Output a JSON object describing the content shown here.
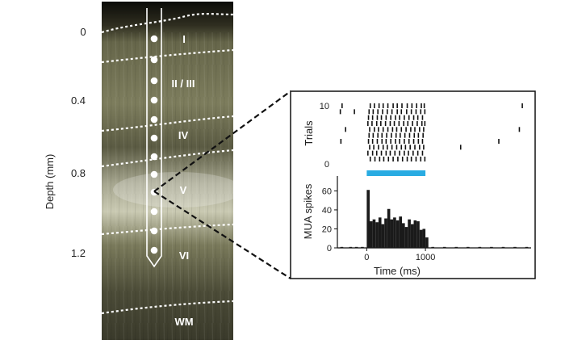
{
  "depth_axis": {
    "title": "Depth (mm)",
    "ticks": [
      "0",
      "0.4",
      "0.8",
      "1.2"
    ]
  },
  "layers": [
    "I",
    "II / III",
    "IV",
    "V",
    "VI",
    "WM"
  ],
  "colors": {
    "tissue_dark": "#3e3d2c",
    "tissue_mid": "#6f6f52",
    "tissue_light": "#bcbca6",
    "stimulus_bar": "#29abe2",
    "histogram": "#1a1a1a"
  },
  "chart_data": [
    {
      "type": "scatter",
      "ylabel": "Trials",
      "ytick_labels": [
        "10",
        "0"
      ],
      "ylim": [
        0,
        10
      ],
      "xlim": [
        -500,
        2800
      ],
      "stimulus_window": [
        0,
        1000
      ],
      "trials": [
        {
          "trial": 10,
          "spikes": [
            -420,
            60,
            130,
            210,
            280,
            360,
            450,
            520,
            600,
            690,
            770,
            850,
            930,
            980,
            2650
          ]
        },
        {
          "trial": 9,
          "spikes": [
            -450,
            -210,
            40,
            110,
            190,
            270,
            350,
            430,
            520,
            590,
            680,
            760,
            840,
            920,
            990
          ]
        },
        {
          "trial": 8,
          "spikes": [
            30,
            100,
            180,
            250,
            330,
            410,
            490,
            560,
            640,
            720,
            800,
            870,
            950
          ]
        },
        {
          "trial": 7,
          "spikes": [
            20,
            90,
            170,
            240,
            320,
            400,
            470,
            550,
            630,
            700,
            780,
            860,
            940,
            990
          ]
        },
        {
          "trial": 6,
          "spikes": [
            -360,
            50,
            130,
            200,
            280,
            360,
            440,
            510,
            590,
            670,
            750,
            820,
            900,
            970,
            2600
          ]
        },
        {
          "trial": 5,
          "spikes": [
            40,
            110,
            190,
            260,
            340,
            420,
            500,
            570,
            650,
            730,
            810,
            880,
            960
          ]
        },
        {
          "trial": 4,
          "spikes": [
            -440,
            30,
            100,
            180,
            260,
            330,
            410,
            490,
            560,
            640,
            720,
            800,
            880,
            950,
            2250
          ]
        },
        {
          "trial": 3,
          "spikes": [
            50,
            120,
            200,
            280,
            350,
            430,
            510,
            590,
            660,
            740,
            820,
            900,
            970,
            1600
          ]
        },
        {
          "trial": 2,
          "spikes": [
            20,
            100,
            170,
            250,
            330,
            400,
            480,
            560,
            640,
            710,
            790,
            870,
            950
          ]
        },
        {
          "trial": 1,
          "spikes": [
            60,
            140,
            220,
            290,
            370,
            450,
            530,
            610,
            690,
            760,
            840,
            920,
            990
          ]
        }
      ]
    },
    {
      "type": "bar",
      "ylabel": "MUA spikes",
      "xlabel": "Time (ms)",
      "xticks": [
        0,
        1000
      ],
      "yticks": [
        0,
        20,
        40,
        60
      ],
      "ylim": [
        0,
        68
      ],
      "xlim": [
        -500,
        2800
      ],
      "bin_width_ms": 50,
      "bins": [
        {
          "x": -450,
          "y": 1
        },
        {
          "x": -400,
          "y": 0
        },
        {
          "x": -350,
          "y": 0
        },
        {
          "x": -300,
          "y": 1
        },
        {
          "x": -250,
          "y": 0
        },
        {
          "x": -200,
          "y": 1
        },
        {
          "x": -150,
          "y": 0
        },
        {
          "x": -100,
          "y": 1
        },
        {
          "x": -50,
          "y": 0
        },
        {
          "x": 0,
          "y": 61
        },
        {
          "x": 50,
          "y": 28
        },
        {
          "x": 100,
          "y": 30
        },
        {
          "x": 150,
          "y": 27
        },
        {
          "x": 200,
          "y": 32
        },
        {
          "x": 250,
          "y": 25
        },
        {
          "x": 300,
          "y": 31
        },
        {
          "x": 350,
          "y": 41
        },
        {
          "x": 400,
          "y": 30
        },
        {
          "x": 450,
          "y": 32
        },
        {
          "x": 500,
          "y": 29
        },
        {
          "x": 550,
          "y": 33
        },
        {
          "x": 600,
          "y": 26
        },
        {
          "x": 650,
          "y": 22
        },
        {
          "x": 700,
          "y": 30
        },
        {
          "x": 750,
          "y": 25
        },
        {
          "x": 800,
          "y": 29
        },
        {
          "x": 850,
          "y": 28
        },
        {
          "x": 900,
          "y": 19
        },
        {
          "x": 950,
          "y": 20
        },
        {
          "x": 1000,
          "y": 11
        },
        {
          "x": 1100,
          "y": 1
        },
        {
          "x": 1300,
          "y": 1
        },
        {
          "x": 1500,
          "y": 1
        },
        {
          "x": 1700,
          "y": 1
        },
        {
          "x": 1900,
          "y": 1
        },
        {
          "x": 2100,
          "y": 1
        },
        {
          "x": 2300,
          "y": 1
        },
        {
          "x": 2500,
          "y": 1
        },
        {
          "x": 2700,
          "y": 1
        }
      ]
    }
  ]
}
